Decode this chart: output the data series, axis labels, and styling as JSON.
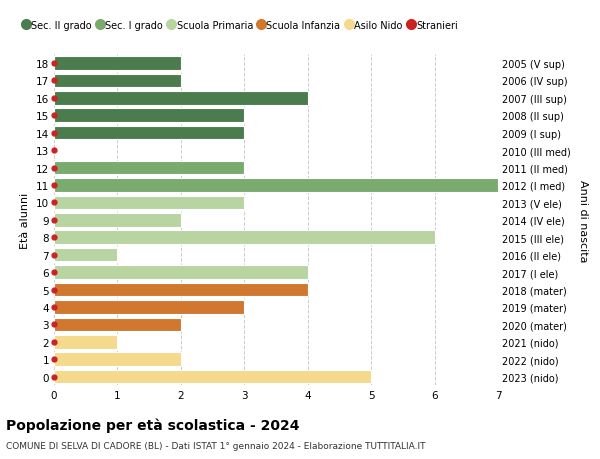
{
  "ages": [
    18,
    17,
    16,
    15,
    14,
    13,
    12,
    11,
    10,
    9,
    8,
    7,
    6,
    5,
    4,
    3,
    2,
    1,
    0
  ],
  "years": [
    "2005 (V sup)",
    "2006 (IV sup)",
    "2007 (III sup)",
    "2008 (II sup)",
    "2009 (I sup)",
    "2010 (III med)",
    "2011 (II med)",
    "2012 (I med)",
    "2013 (V ele)",
    "2014 (IV ele)",
    "2015 (III ele)",
    "2016 (II ele)",
    "2017 (I ele)",
    "2018 (mater)",
    "2019 (mater)",
    "2020 (mater)",
    "2021 (nido)",
    "2022 (nido)",
    "2023 (nido)"
  ],
  "bar_values": [
    2,
    2,
    4,
    3,
    3,
    0,
    3,
    7,
    3,
    2,
    6,
    1,
    4,
    4,
    3,
    2,
    1,
    2,
    5
  ],
  "bar_colors": [
    "#4a7c4e",
    "#4a7c4e",
    "#4a7c4e",
    "#4a7c4e",
    "#4a7c4e",
    "#7aab6e",
    "#7aab6e",
    "#7aab6e",
    "#b8d4a0",
    "#b8d4a0",
    "#b8d4a0",
    "#b8d4a0",
    "#b8d4a0",
    "#d07830",
    "#d07830",
    "#d07830",
    "#f5d98c",
    "#f5d98c",
    "#f5d98c"
  ],
  "title": "Popolazione per età scolastica - 2024",
  "subtitle": "COMUNE DI SELVA DI CADORE (BL) - Dati ISTAT 1° gennaio 2024 - Elaborazione TUTTITALIA.IT",
  "ylabel_left": "Età alunni",
  "ylabel_right": "Anni di nascita",
  "xlim": [
    0,
    7
  ],
  "legend_labels": [
    "Sec. II grado",
    "Sec. I grado",
    "Scuola Primaria",
    "Scuola Infanzia",
    "Asilo Nido",
    "Stranieri"
  ],
  "legend_colors": [
    "#4a7c4e",
    "#7aab6e",
    "#b8d4a0",
    "#d07830",
    "#f5d98c",
    "#cc2222"
  ],
  "bg_color": "#ffffff",
  "bar_height": 0.78,
  "grid_color": "#cccccc"
}
